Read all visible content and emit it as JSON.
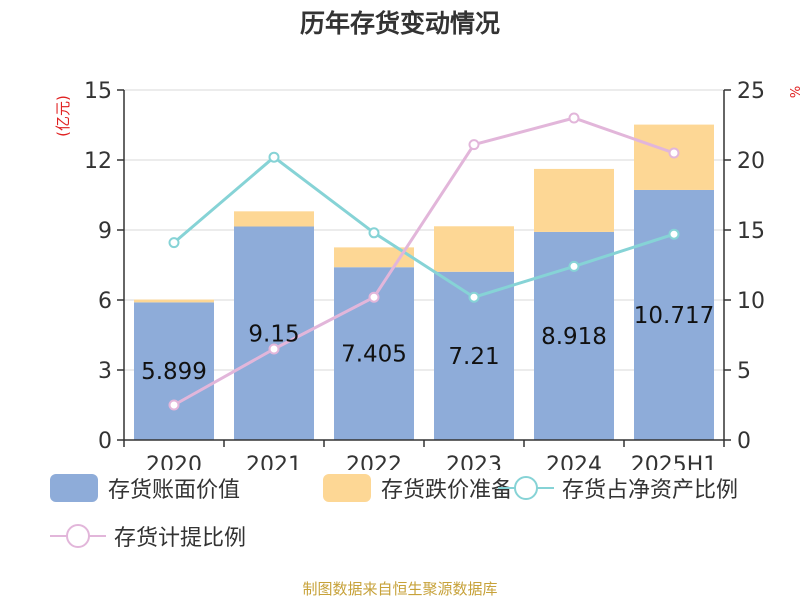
{
  "title": "历年存货变动情况",
  "source": "制图数据来自恒生聚源数据库",
  "colors": {
    "book_value": "#8eacd9",
    "provision": "#fdd795",
    "ratio_net_assets": "#86d3d6",
    "provision_ratio": "#e2b6da",
    "axis_label": "#e02020"
  },
  "legend": [
    {
      "label": "存货账面价值",
      "type": "swatch",
      "color_key": "book_value"
    },
    {
      "label": "存货跌价准备",
      "type": "swatch",
      "color_key": "provision"
    },
    {
      "label": "存货占净资产比例",
      "type": "line",
      "color_key": "ratio_net_assets"
    },
    {
      "label": "存货计提比例",
      "type": "line",
      "color_key": "provision_ratio"
    }
  ],
  "chart_data": {
    "type": "bar",
    "categories": [
      "2020",
      "2021",
      "2022",
      "2023",
      "2024",
      "2025H1"
    ],
    "ylabel": "(亿元)",
    "ylim": [
      0,
      15
    ],
    "yticks": [
      "0",
      "3",
      "6",
      "9",
      "12",
      "15"
    ],
    "y2label": "%",
    "y2lim": [
      0,
      25
    ],
    "y2ticks": [
      "0",
      "5",
      "10",
      "15",
      "20",
      "25"
    ],
    "grid": true,
    "legend_position": "bottom",
    "stacked": true,
    "series": [
      {
        "name": "存货账面价值",
        "kind": "bar",
        "axis": "left",
        "values": [
          5.899,
          9.15,
          7.405,
          7.21,
          8.918,
          10.717
        ],
        "labels": [
          "5.899",
          "9.15",
          "7.405",
          "7.21",
          "8.918",
          "10.717"
        ]
      },
      {
        "name": "存货跌价准备",
        "kind": "bar",
        "axis": "left",
        "values": [
          0.12,
          0.65,
          0.85,
          1.95,
          2.7,
          2.8
        ]
      },
      {
        "name": "存货占净资产比例",
        "kind": "line",
        "axis": "right",
        "values": [
          14.1,
          20.2,
          14.8,
          10.2,
          12.4,
          14.7
        ]
      },
      {
        "name": "存货计提比例",
        "kind": "line",
        "axis": "right",
        "values": [
          2.5,
          6.5,
          10.2,
          21.1,
          23.0,
          20.5
        ]
      }
    ]
  }
}
